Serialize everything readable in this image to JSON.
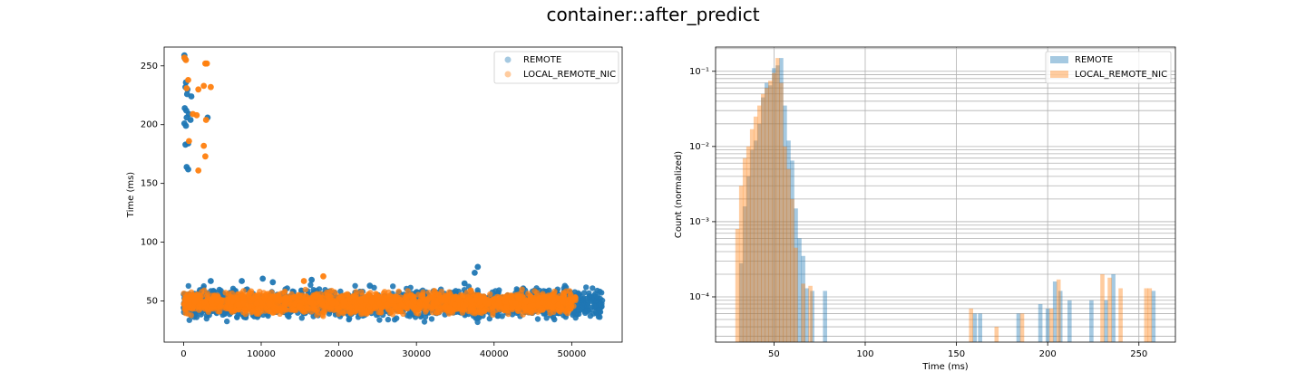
{
  "figure": {
    "suptitle": "container::after_predict"
  },
  "colors": {
    "remote": "#1f77b4",
    "local_remote_nic": "#ff7f0e",
    "grid": "#b0b0b0"
  },
  "chart_data": [
    {
      "type": "scatter",
      "title": "",
      "xlabel": "",
      "ylabel": "Time (ms)",
      "xlim": [
        -2500,
        56500
      ],
      "ylim": [
        15,
        266
      ],
      "xticks": [
        0,
        10000,
        20000,
        30000,
        40000,
        50000
      ],
      "yticks": [
        50,
        100,
        150,
        200,
        250
      ],
      "grid": false,
      "legend": "top-right",
      "series": [
        {
          "name": "REMOTE",
          "color_key": "remote",
          "bands": [
            {
              "x": [
                0,
                54000
              ],
              "y": [
                31,
                65
              ]
            }
          ],
          "points": [
            [
              100,
              259
            ],
            [
              200,
              256
            ],
            [
              300,
              236
            ],
            [
              250,
              232
            ],
            [
              500,
              230
            ],
            [
              450,
              226
            ],
            [
              1000,
              224
            ],
            [
              150,
              214
            ],
            [
              350,
              212
            ],
            [
              700,
              209
            ],
            [
              400,
              206
            ],
            [
              900,
              204
            ],
            [
              100,
              201
            ],
            [
              300,
              199
            ],
            [
              3100,
              206
            ],
            [
              600,
              184
            ],
            [
              250,
              183
            ],
            [
              400,
              164
            ],
            [
              600,
              162
            ],
            [
              3500,
              67
            ],
            [
              7500,
              67
            ],
            [
              10200,
              69
            ],
            [
              11500,
              66
            ],
            [
              16500,
              68
            ],
            [
              24000,
              63
            ],
            [
              36200,
              65
            ],
            [
              37900,
              79
            ],
            [
              37500,
              74
            ]
          ]
        },
        {
          "name": "LOCAL_REMOTE_NIC",
          "color_key": "local_remote_nic",
          "bands": [
            {
              "x": [
                0,
                50500
              ],
              "y": [
                36,
                61
              ]
            }
          ],
          "points": [
            [
              100,
              257
            ],
            [
              300,
              255
            ],
            [
              2800,
              252
            ],
            [
              3000,
              252
            ],
            [
              600,
              238
            ],
            [
              2600,
              233
            ],
            [
              3500,
              232
            ],
            [
              400,
              231
            ],
            [
              1900,
              230
            ],
            [
              1200,
              209
            ],
            [
              1700,
              208
            ],
            [
              2900,
              204
            ],
            [
              700,
              186
            ],
            [
              2600,
              182
            ],
            [
              2800,
              173
            ],
            [
              1900,
              161
            ],
            [
              15500,
              67
            ],
            [
              18000,
              71
            ],
            [
              37000,
              59
            ]
          ]
        }
      ]
    },
    {
      "type": "bar",
      "title": "",
      "xlabel": "Time (ms)",
      "ylabel": "Count (normalized)",
      "xlim": [
        18,
        270
      ],
      "ylim": [
        2.5e-05,
        0.21
      ],
      "yscale": "log",
      "xticks": [
        50,
        100,
        150,
        200,
        250
      ],
      "ytick_labels": [
        "10⁻⁴",
        "10⁻³",
        "10⁻²",
        "10⁻¹"
      ],
      "ytick_values": [
        0.0001,
        0.001,
        0.01,
        0.1
      ],
      "grid": true,
      "legend": "top-right",
      "bin_width": 2.3,
      "series": [
        {
          "name": "REMOTE",
          "color_key": "remote",
          "x": [
            32,
            34,
            36,
            38,
            40,
            42,
            44,
            46,
            48,
            50,
            52,
            54,
            56,
            58,
            60,
            62,
            64,
            66,
            68,
            71,
            78,
            160,
            163,
            184,
            196,
            200,
            204,
            207,
            212,
            224,
            232,
            236,
            258
          ],
          "values": [
            0.00028,
            0.0016,
            0.004,
            0.009,
            0.012,
            0.02,
            0.045,
            0.07,
            0.065,
            0.11,
            0.12,
            0.15,
            0.035,
            0.012,
            0.0065,
            0.0015,
            0.0006,
            0.00035,
            0.00013,
            0.00012,
            0.00012,
            6e-05,
            6e-05,
            6e-05,
            8e-05,
            7e-05,
            0.00016,
            0.00012,
            9e-05,
            9e-05,
            9e-05,
            0.0002,
            0.00012
          ]
        },
        {
          "name": "LOCAL_REMOTE_NIC",
          "color_key": "local_remote_nic",
          "x": [
            30,
            32,
            34,
            36,
            38,
            40,
            42,
            44,
            46,
            48,
            50,
            52,
            54,
            56,
            58,
            60,
            62,
            66,
            70,
            158,
            172,
            186,
            202,
            206,
            230,
            234,
            240,
            254,
            256
          ],
          "values": [
            0.0008,
            0.003,
            0.007,
            0.01,
            0.017,
            0.025,
            0.035,
            0.05,
            0.06,
            0.075,
            0.095,
            0.15,
            0.07,
            0.01,
            0.005,
            0.002,
            0.00045,
            0.00015,
            0.00014,
            7e-05,
            4e-05,
            6e-05,
            7e-05,
            0.00017,
            0.0002,
            0.00018,
            0.00013,
            0.00013,
            0.00013
          ]
        }
      ]
    }
  ]
}
